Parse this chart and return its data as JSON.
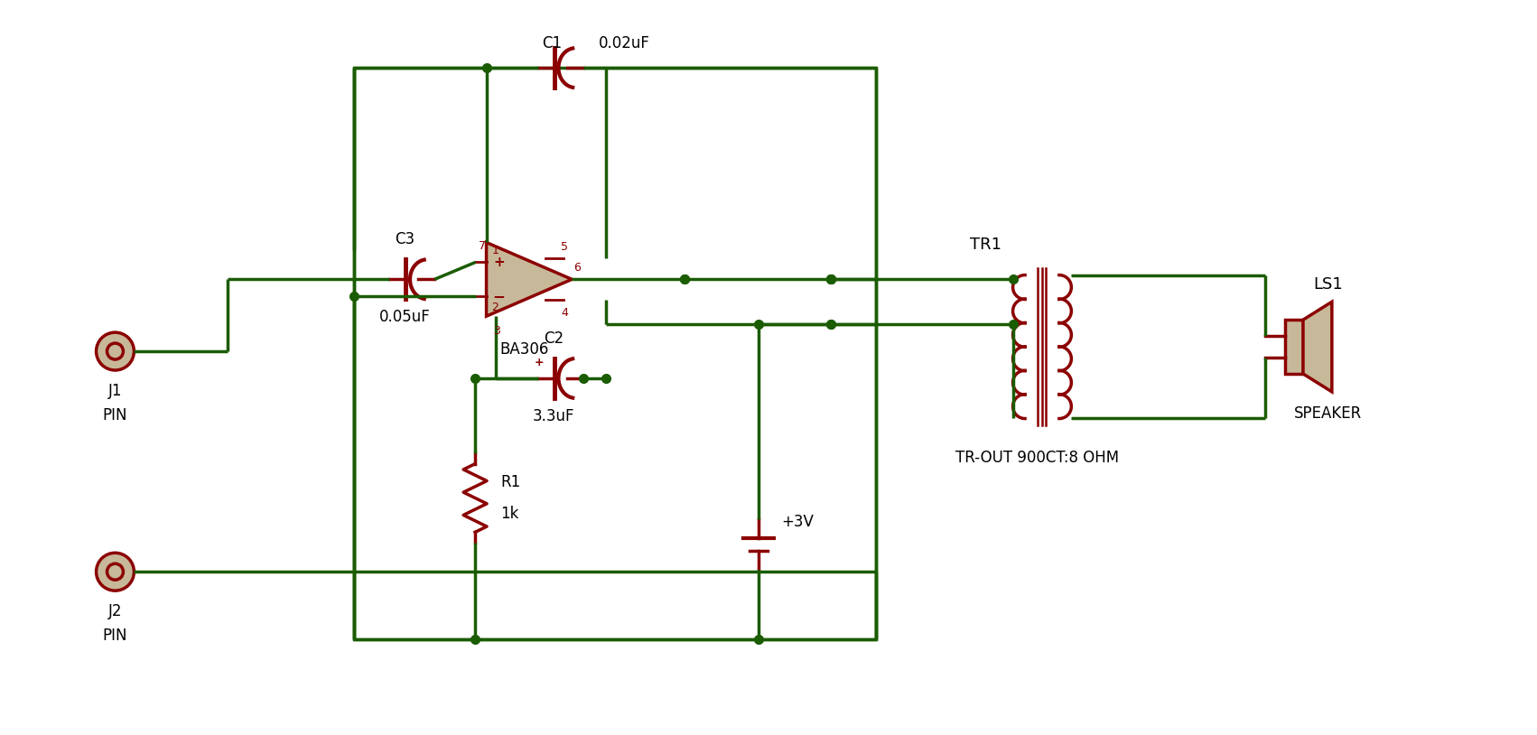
{
  "bg_color": "#ffffff",
  "wire_color": "#1a5c00",
  "component_color": "#8B0000",
  "dot_color": "#1a5c00",
  "text_color": "#000000",
  "amp_fill": "#c8b89a",
  "speaker_fill": "#c8b89a",
  "components": {
    "C1": {
      "label": "C1",
      "value": "0.02uF"
    },
    "C2": {
      "label": "C2",
      "value": "3.3uF"
    },
    "C3": {
      "label": "C3",
      "value": "0.05uF"
    },
    "R1": {
      "label": "R1",
      "value": "1k"
    },
    "BA306": {
      "label": "BA306"
    },
    "TR1": {
      "label": "TR1",
      "sublabel": "TR-OUT 900CT:8 OHM"
    },
    "LS1": {
      "label": "LS1",
      "sublabel": "SPEAKER"
    },
    "J1": {
      "label": "J1",
      "sublabel": "PIN"
    },
    "J2": {
      "label": "J2",
      "sublabel": "PIN"
    },
    "VCC": {
      "label": "+3V"
    }
  }
}
